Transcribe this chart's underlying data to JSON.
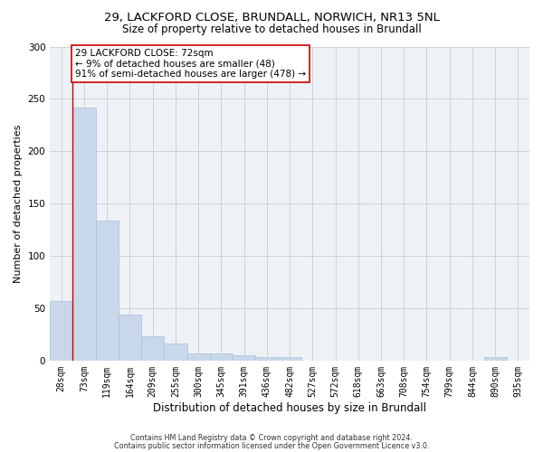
{
  "title_line1": "29, LACKFORD CLOSE, BRUNDALL, NORWICH, NR13 5NL",
  "title_line2": "Size of property relative to detached houses in Brundall",
  "xlabel": "Distribution of detached houses by size in Brundall",
  "ylabel": "Number of detached properties",
  "bar_labels": [
    "28sqm",
    "73sqm",
    "119sqm",
    "164sqm",
    "209sqm",
    "255sqm",
    "300sqm",
    "345sqm",
    "391sqm",
    "436sqm",
    "482sqm",
    "527sqm",
    "572sqm",
    "618sqm",
    "663sqm",
    "708sqm",
    "754sqm",
    "799sqm",
    "844sqm",
    "890sqm",
    "935sqm"
  ],
  "bar_values": [
    57,
    242,
    134,
    44,
    23,
    16,
    7,
    7,
    5,
    3,
    3,
    0,
    0,
    0,
    0,
    0,
    0,
    0,
    0,
    3,
    0
  ],
  "bar_color": "#c8d8ea",
  "bar_edge_color": "#a8c0d8",
  "annotation_box_text": "29 LACKFORD CLOSE: 72sqm\n← 9% of detached houses are smaller (48)\n91% of semi-detached houses are larger (478) →",
  "vline_x": 0.5,
  "vline_color": "#cc0000",
  "annotation_box_color": "#ffffff",
  "annotation_box_edge_color": "#cc0000",
  "ylim": [
    0,
    300
  ],
  "yticks": [
    0,
    50,
    100,
    150,
    200,
    250,
    300
  ],
  "grid_color": "#cccccc",
  "background_color": "#eef2f7",
  "footer_line1": "Contains HM Land Registry data © Crown copyright and database right 2024.",
  "footer_line2": "Contains public sector information licensed under the Open Government Licence v3.0.",
  "title_fontsize": 9.5,
  "subtitle_fontsize": 8.5,
  "tick_fontsize": 7,
  "ylabel_fontsize": 8,
  "xlabel_fontsize": 8.5,
  "footer_fontsize": 5.8,
  "ann_fontsize": 7.5
}
